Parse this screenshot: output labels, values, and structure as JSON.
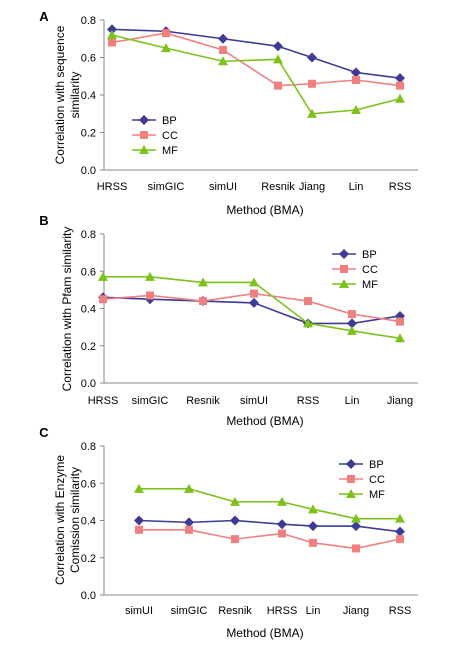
{
  "chart_data": [
    {
      "type": "line",
      "panel_label": "A",
      "categories": [
        "HRSS",
        "simGIC",
        "simUI",
        "Resnik",
        "Jiang",
        "Lin",
        "RSS"
      ],
      "series": [
        {
          "name": "BP",
          "values": [
            0.75,
            0.74,
            0.7,
            0.66,
            0.6,
            0.52,
            0.49
          ]
        },
        {
          "name": "CC",
          "values": [
            0.68,
            0.73,
            0.64,
            0.45,
            0.46,
            0.48,
            0.45
          ]
        },
        {
          "name": "MF",
          "values": [
            0.72,
            0.65,
            0.58,
            0.59,
            0.3,
            0.32,
            0.38
          ]
        }
      ],
      "xlabel": "Method (BMA)",
      "ylabel": [
        "Correlation with sequence",
        "similarity"
      ],
      "ylim": [
        0,
        0.8
      ],
      "yticks": [
        "0.0",
        "0.2",
        "0.4",
        "0.6",
        "0.8"
      ],
      "legend": "left"
    },
    {
      "type": "line",
      "panel_label": "B",
      "categories": [
        "HRSS",
        "simGIC",
        "Resnik",
        "simUI",
        "RSS",
        "Lin",
        "Jiang"
      ],
      "series": [
        {
          "name": "BP",
          "values": [
            0.46,
            0.45,
            0.44,
            0.43,
            0.32,
            0.32,
            0.36
          ]
        },
        {
          "name": "CC",
          "values": [
            0.45,
            0.47,
            0.44,
            0.48,
            0.44,
            0.37,
            0.33
          ]
        },
        {
          "name": "MF",
          "values": [
            0.57,
            0.57,
            0.54,
            0.54,
            0.32,
            0.28,
            0.24
          ]
        }
      ],
      "xlabel": "Method (BMA)",
      "ylabel": [
        "Correlation with Pfam similarity"
      ],
      "ylim": [
        0,
        0.8
      ],
      "yticks": [
        "0.0",
        "0.2",
        "0.4",
        "0.6",
        "0.8"
      ],
      "legend": "top-right"
    },
    {
      "type": "line",
      "panel_label": "C",
      "categories": [
        "simUI",
        "simGIC",
        "Resnik",
        "HRSS",
        "Lin",
        "Jiang",
        "RSS"
      ],
      "series": [
        {
          "name": "BP",
          "values": [
            0.4,
            0.39,
            0.4,
            0.38,
            0.37,
            0.37,
            0.34
          ]
        },
        {
          "name": "CC",
          "values": [
            0.35,
            0.35,
            0.3,
            0.33,
            0.28,
            0.25,
            0.3
          ]
        },
        {
          "name": "MF",
          "values": [
            0.57,
            0.57,
            0.5,
            0.5,
            0.46,
            0.41,
            0.41
          ]
        }
      ],
      "xlabel": "Method (BMA)",
      "ylabel": [
        "Correlation with Enzyme",
        "Comission similarity"
      ],
      "ylim": [
        0,
        0.8
      ],
      "yticks": [
        "0.0",
        "0.2",
        "0.4",
        "0.6",
        "0.8"
      ],
      "legend": "top-right"
    }
  ],
  "styles": {
    "BP": {
      "color": "#3c3c96",
      "marker": "diamond"
    },
    "CC": {
      "color": "#f08080",
      "marker": "square"
    },
    "MF": {
      "color": "#7cc21a",
      "marker": "triangle"
    },
    "axis_color": "#888888"
  }
}
